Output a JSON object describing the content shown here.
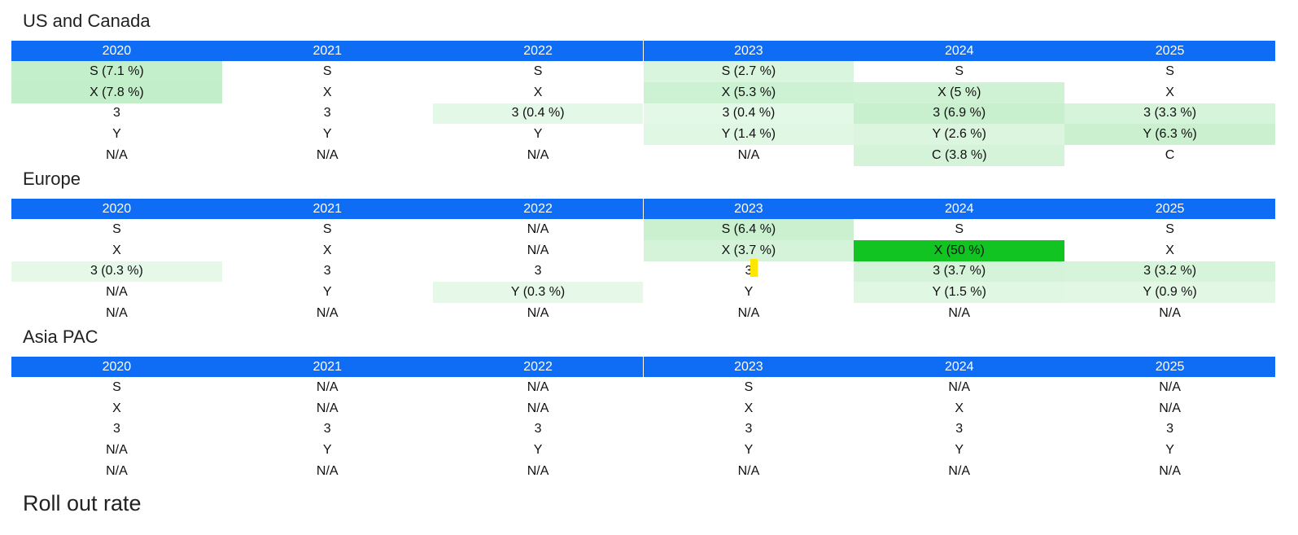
{
  "header_color": "#0f6cf5",
  "sections": [
    {
      "title": "US and Canada",
      "headers": [
        "2020",
        "2021",
        "2022",
        "2023",
        "2024",
        "2025"
      ],
      "rows": [
        [
          "S (7.1 %)",
          "S",
          "S",
          "S (2.7 %)",
          "S",
          "S"
        ],
        [
          "X (7.8 %)",
          "X",
          "X",
          "X (5.3 %)",
          "X (5 %)",
          "X"
        ],
        [
          "3",
          "3",
          "3 (0.4 %)",
          "3 (0.4 %)",
          "3 (6.9 %)",
          "3 (3.3 %)"
        ],
        [
          "Y",
          "Y",
          "Y",
          "Y (1.4 %)",
          "Y (2.6 %)",
          "Y (6.3 %)"
        ],
        [
          "N/A",
          "N/A",
          "N/A",
          "N/A",
          "C (3.8 %)",
          "C"
        ]
      ],
      "fills": [
        [
          "#c4efcb",
          "#ffffff",
          "#ffffff",
          "#d9f5de",
          "#ffffff",
          "#ffffff"
        ],
        [
          "#c2eec9",
          "#ffffff",
          "#ffffff",
          "#cdf2d3",
          "#cff2d5",
          "#ffffff"
        ],
        [
          "#ffffff",
          "#ffffff",
          "#e4f8e7",
          "#e4f8e7",
          "#c8f0ce",
          "#d6f4da"
        ],
        [
          "#ffffff",
          "#ffffff",
          "#ffffff",
          "#e0f7e3",
          "#dbf5df",
          "#caf0d0"
        ],
        [
          "#ffffff",
          "#ffffff",
          "#ffffff",
          "#ffffff",
          "#d4f3d9",
          "#ffffff"
        ]
      ]
    },
    {
      "title": "Europe",
      "headers": [
        "2020",
        "2021",
        "2022",
        "2023",
        "2024",
        "2025"
      ],
      "rows": [
        [
          "S",
          "S",
          "N/A",
          "S (6.4 %)",
          "S",
          "S"
        ],
        [
          "X",
          "X",
          "N/A",
          "X (3.7 %)",
          "X (50 %)",
          "X"
        ],
        [
          "3 (0.3 %)",
          "3",
          "3",
          "3",
          "3 (3.7 %)",
          "3 (3.2 %)"
        ],
        [
          "N/A",
          "Y",
          "Y (0.3 %)",
          "Y",
          "Y (1.5 %)",
          "Y (0.9 %)"
        ],
        [
          "N/A",
          "N/A",
          "N/A",
          "N/A",
          "N/A",
          "N/A"
        ]
      ],
      "fills": [
        [
          "#ffffff",
          "#ffffff",
          "#ffffff",
          "#caf0d0",
          "#ffffff",
          "#ffffff"
        ],
        [
          "#ffffff",
          "#ffffff",
          "#ffffff",
          "#d4f3d9",
          "#11c422",
          "#ffffff"
        ],
        [
          "#e6f9e8",
          "#ffffff",
          "#ffffff",
          "#ffffff",
          "#d4f3d9",
          "#d6f4da"
        ],
        [
          "#ffffff",
          "#ffffff",
          "#e6f9e8",
          "#ffffff",
          "#e0f7e3",
          "#e2f8e5"
        ],
        [
          "#ffffff",
          "#ffffff",
          "#ffffff",
          "#ffffff",
          "#ffffff",
          "#ffffff"
        ]
      ]
    },
    {
      "title": "Asia PAC",
      "headers": [
        "2020",
        "2021",
        "2022",
        "2023",
        "2024",
        "2025"
      ],
      "rows": [
        [
          "S",
          "N/A",
          "N/A",
          "S",
          "N/A",
          "N/A"
        ],
        [
          "X",
          "N/A",
          "N/A",
          "X",
          "X",
          "N/A"
        ],
        [
          "3",
          "3",
          "3",
          "3",
          "3",
          "3"
        ],
        [
          "N/A",
          "Y",
          "Y",
          "Y",
          "Y",
          "Y"
        ],
        [
          "N/A",
          "N/A",
          "N/A",
          "N/A",
          "N/A",
          "N/A"
        ]
      ],
      "fills": [
        [
          "#ffffff",
          "#ffffff",
          "#ffffff",
          "#ffffff",
          "#ffffff",
          "#ffffff"
        ],
        [
          "#ffffff",
          "#ffffff",
          "#ffffff",
          "#ffffff",
          "#ffffff",
          "#ffffff"
        ],
        [
          "#ffffff",
          "#ffffff",
          "#ffffff",
          "#ffffff",
          "#ffffff",
          "#ffffff"
        ],
        [
          "#ffffff",
          "#ffffff",
          "#ffffff",
          "#ffffff",
          "#ffffff",
          "#ffffff"
        ],
        [
          "#ffffff",
          "#ffffff",
          "#ffffff",
          "#ffffff",
          "#ffffff",
          "#ffffff"
        ]
      ]
    }
  ],
  "footer_title": "Roll out rate"
}
